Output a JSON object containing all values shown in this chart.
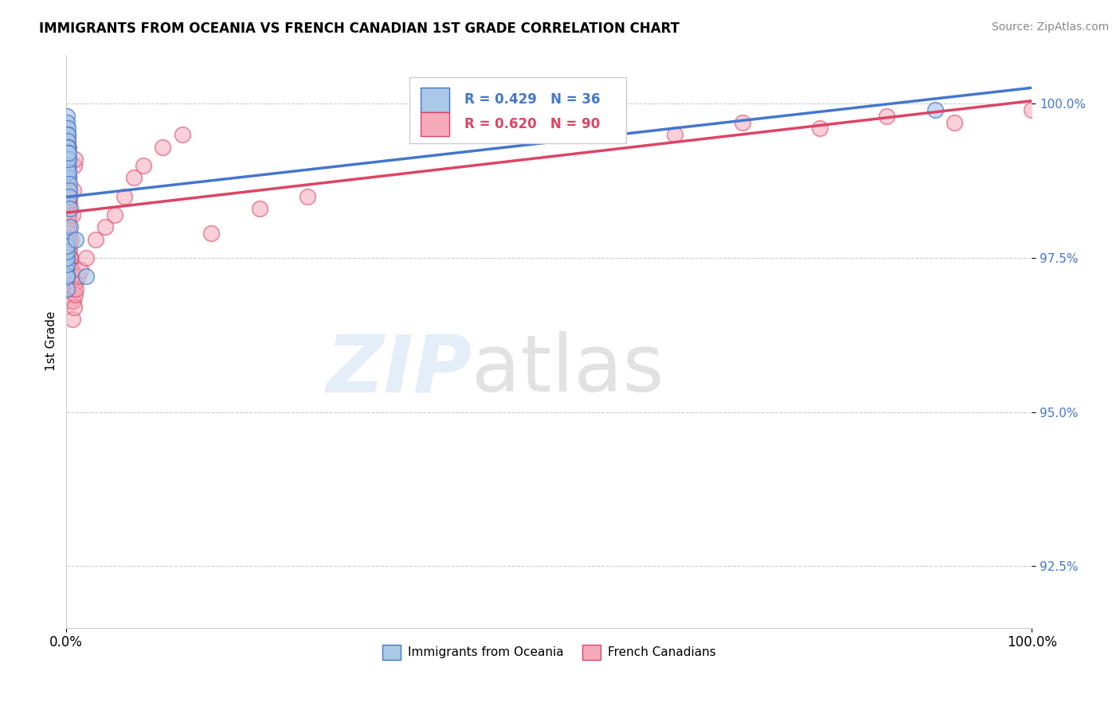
{
  "title": "IMMIGRANTS FROM OCEANIA VS FRENCH CANADIAN 1ST GRADE CORRELATION CHART",
  "source": "Source: ZipAtlas.com",
  "ylabel": "1st Grade",
  "xlim": [
    0.0,
    100.0
  ],
  "ylim": [
    91.5,
    100.8
  ],
  "yticks": [
    92.5,
    95.0,
    97.5,
    100.0
  ],
  "xticks": [
    0.0,
    100.0
  ],
  "xtick_labels": [
    "0.0%",
    "100.0%"
  ],
  "ytick_labels": [
    "92.5%",
    "95.0%",
    "97.5%",
    "100.0%"
  ],
  "legend_blue_label": "R = 0.429   N = 36",
  "legend_pink_label": "R = 0.620   N = 90",
  "blue_color": "#aac8e8",
  "pink_color": "#f5aaba",
  "blue_line_color": "#4477cc",
  "pink_line_color": "#dd4466",
  "blue_scatter_x": [
    0.05,
    0.08,
    0.1,
    0.1,
    0.12,
    0.13,
    0.14,
    0.15,
    0.15,
    0.16,
    0.17,
    0.18,
    0.18,
    0.2,
    0.22,
    0.24,
    0.25,
    0.28,
    0.3,
    0.32,
    0.0,
    0.01,
    0.01,
    0.02,
    0.02,
    0.03,
    0.03,
    0.04,
    0.04,
    0.05,
    0.35,
    0.4,
    1.0,
    2.0,
    55.0,
    90.0
  ],
  "blue_scatter_y": [
    99.8,
    99.7,
    99.6,
    99.5,
    99.5,
    99.4,
    99.3,
    99.3,
    99.2,
    99.1,
    99.0,
    98.9,
    99.0,
    98.8,
    98.9,
    99.1,
    99.2,
    98.7,
    98.6,
    98.5,
    97.8,
    97.5,
    97.3,
    97.2,
    97.0,
    97.2,
    97.4,
    97.5,
    97.6,
    97.7,
    98.3,
    98.0,
    97.8,
    97.2,
    99.8,
    99.9
  ],
  "pink_scatter_x": [
    0.01,
    0.02,
    0.03,
    0.04,
    0.05,
    0.06,
    0.07,
    0.08,
    0.09,
    0.1,
    0.1,
    0.11,
    0.12,
    0.13,
    0.14,
    0.15,
    0.15,
    0.16,
    0.17,
    0.18,
    0.18,
    0.19,
    0.2,
    0.21,
    0.22,
    0.23,
    0.24,
    0.25,
    0.26,
    0.28,
    0.3,
    0.32,
    0.34,
    0.36,
    0.38,
    0.4,
    0.42,
    0.45,
    0.48,
    0.5,
    0.55,
    0.6,
    0.65,
    0.7,
    0.75,
    0.8,
    0.85,
    0.9,
    1.0,
    1.2,
    1.5,
    2.0,
    3.0,
    4.0,
    5.0,
    6.0,
    7.0,
    8.0,
    10.0,
    12.0,
    0.3,
    0.28,
    0.26,
    0.25,
    0.24,
    0.22,
    0.2,
    0.18,
    0.16,
    0.14,
    0.12,
    0.1,
    0.08,
    0.06,
    0.04,
    0.5,
    0.6,
    0.7,
    0.8,
    0.9,
    15.0,
    20.0,
    25.0,
    55.0,
    63.0,
    70.0,
    78.0,
    85.0,
    92.0,
    100.0
  ],
  "pink_scatter_y": [
    99.5,
    99.3,
    99.2,
    99.1,
    99.0,
    98.9,
    99.0,
    99.1,
    98.8,
    98.7,
    99.2,
    98.6,
    98.5,
    98.4,
    98.5,
    98.3,
    99.0,
    98.8,
    98.2,
    98.1,
    98.9,
    98.0,
    99.3,
    98.3,
    98.2,
    97.9,
    98.1,
    98.0,
    97.8,
    97.9,
    97.8,
    97.7,
    97.6,
    97.5,
    97.4,
    97.5,
    97.3,
    97.2,
    97.0,
    96.8,
    97.3,
    96.5,
    97.2,
    96.8,
    97.0,
    96.7,
    97.1,
    96.9,
    97.0,
    97.2,
    97.3,
    97.5,
    97.8,
    98.0,
    98.2,
    98.5,
    98.8,
    99.0,
    99.3,
    99.5,
    98.5,
    98.4,
    98.6,
    98.3,
    98.2,
    98.4,
    98.8,
    99.2,
    99.0,
    99.1,
    99.3,
    99.4,
    99.2,
    99.0,
    98.9,
    97.8,
    98.2,
    98.6,
    99.0,
    99.1,
    97.9,
    98.3,
    98.5,
    99.6,
    99.5,
    99.7,
    99.6,
    99.8,
    99.7,
    99.9
  ]
}
